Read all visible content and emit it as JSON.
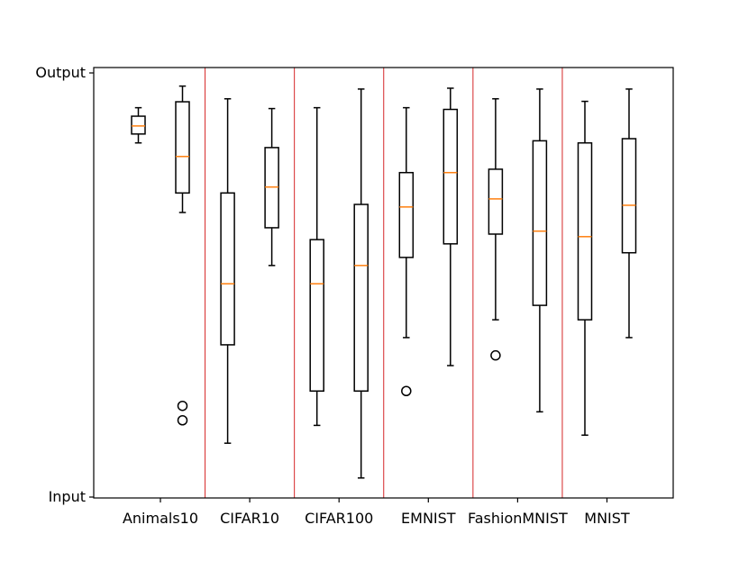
{
  "chart_data": {
    "type": "box",
    "title": "",
    "xlabel": "",
    "ylabel": "",
    "ylim": [
      0,
      1
    ],
    "y_tick_labels": [
      {
        "value": 0,
        "label": "Input"
      },
      {
        "value": 1,
        "label": "Output"
      }
    ],
    "grid": false,
    "categories": [
      "Animals10",
      "CIFAR10",
      "CIFAR100",
      "EMNIST",
      "FashionMNIST",
      "MNIST"
    ],
    "separator_color": "#d62728",
    "median_color": "#ff7f0e",
    "box_color": "#000000",
    "groups": [
      {
        "category": "Animals10",
        "boxes": [
          {
            "whislo": 0.835,
            "q1": 0.856,
            "med": 0.875,
            "q3": 0.898,
            "whishi": 0.918,
            "fliers": []
          },
          {
            "whislo": 0.671,
            "q1": 0.717,
            "med": 0.803,
            "q3": 0.932,
            "whishi": 0.969,
            "fliers": [
              0.215,
              0.181
            ]
          }
        ]
      },
      {
        "category": "CIFAR10",
        "boxes": [
          {
            "whislo": 0.127,
            "q1": 0.359,
            "med": 0.503,
            "q3": 0.717,
            "whishi": 0.939,
            "fliers": []
          },
          {
            "whislo": 0.546,
            "q1": 0.635,
            "med": 0.731,
            "q3": 0.824,
            "whishi": 0.916,
            "fliers": []
          }
        ]
      },
      {
        "category": "CIFAR100",
        "boxes": [
          {
            "whislo": 0.169,
            "q1": 0.25,
            "med": 0.503,
            "q3": 0.607,
            "whishi": 0.918,
            "fliers": []
          },
          {
            "whislo": 0.045,
            "q1": 0.25,
            "med": 0.546,
            "q3": 0.69,
            "whishi": 0.962,
            "fliers": []
          }
        ]
      },
      {
        "category": "EMNIST",
        "boxes": [
          {
            "whislo": 0.376,
            "q1": 0.565,
            "med": 0.684,
            "q3": 0.765,
            "whishi": 0.918,
            "fliers": [
              0.25
            ]
          },
          {
            "whislo": 0.31,
            "q1": 0.597,
            "med": 0.765,
            "q3": 0.914,
            "whishi": 0.964,
            "fliers": []
          }
        ]
      },
      {
        "category": "FashionMNIST",
        "boxes": [
          {
            "whislo": 0.418,
            "q1": 0.62,
            "med": 0.703,
            "q3": 0.773,
            "whishi": 0.939,
            "fliers": [
              0.334
            ]
          },
          {
            "whislo": 0.201,
            "q1": 0.452,
            "med": 0.627,
            "q3": 0.84,
            "whishi": 0.962,
            "fliers": []
          }
        ]
      },
      {
        "category": "MNIST",
        "boxes": [
          {
            "whislo": 0.146,
            "q1": 0.418,
            "med": 0.614,
            "q3": 0.835,
            "whishi": 0.933,
            "fliers": []
          },
          {
            "whislo": 0.376,
            "q1": 0.576,
            "med": 0.688,
            "q3": 0.845,
            "whishi": 0.962,
            "fliers": []
          }
        ]
      }
    ]
  }
}
